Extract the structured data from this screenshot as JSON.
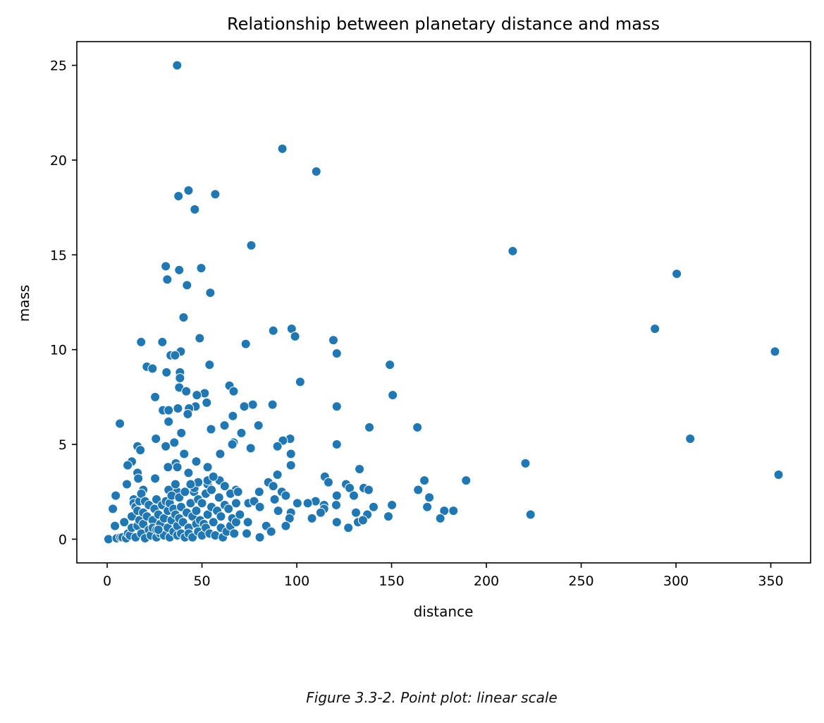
{
  "chart_data": {
    "type": "scatter",
    "title": "Relationship between planetary distance and mass",
    "xlabel": "distance",
    "ylabel": "mass",
    "xlim": [
      -16,
      371
    ],
    "ylim": [
      -1.25,
      26.25
    ],
    "xticks": [
      0,
      50,
      100,
      150,
      200,
      250,
      300,
      350
    ],
    "yticks": [
      0,
      5,
      10,
      15,
      20,
      25
    ],
    "grid": false,
    "color": "#1f77b4",
    "points": [
      [
        36.9,
        25.0
      ],
      [
        92.4,
        20.6
      ],
      [
        110.3,
        19.4
      ],
      [
        42.9,
        18.4
      ],
      [
        37.6,
        18.1
      ],
      [
        57.0,
        18.2
      ],
      [
        46.2,
        17.4
      ],
      [
        76.0,
        15.5
      ],
      [
        213.9,
        15.2
      ],
      [
        300.4,
        14.0
      ],
      [
        30.9,
        14.4
      ],
      [
        49.6,
        14.3
      ],
      [
        38.0,
        14.2
      ],
      [
        31.7,
        13.7
      ],
      [
        42.1,
        13.4
      ],
      [
        54.4,
        13.0
      ],
      [
        40.3,
        11.7
      ],
      [
        288.9,
        11.1
      ],
      [
        97.3,
        11.1
      ],
      [
        87.6,
        11.0
      ],
      [
        99.1,
        10.7
      ],
      [
        119.3,
        10.5
      ],
      [
        48.8,
        10.6
      ],
      [
        17.9,
        10.4
      ],
      [
        29.1,
        10.4
      ],
      [
        73.1,
        10.3
      ],
      [
        352.2,
        9.9
      ],
      [
        38.8,
        9.9
      ],
      [
        121.1,
        9.8
      ],
      [
        149.1,
        9.2
      ],
      [
        54.0,
        9.2
      ],
      [
        20.9,
        9.1
      ],
      [
        23.9,
        9.0
      ],
      [
        31.3,
        8.8
      ],
      [
        33.5,
        9.7
      ],
      [
        35.8,
        9.7
      ],
      [
        38.4,
        8.8
      ],
      [
        38.4,
        8.5
      ],
      [
        101.8,
        8.3
      ],
      [
        64.5,
        8.1
      ],
      [
        38.0,
        8.0
      ],
      [
        66.7,
        7.8
      ],
      [
        51.4,
        7.7
      ],
      [
        41.7,
        7.8
      ],
      [
        47.3,
        7.6
      ],
      [
        150.6,
        7.6
      ],
      [
        52.5,
        7.2
      ],
      [
        25.3,
        7.5
      ],
      [
        87.2,
        7.1
      ],
      [
        76.8,
        7.1
      ],
      [
        72.3,
        7.0
      ],
      [
        121.1,
        7.0
      ],
      [
        46.6,
        7.0
      ],
      [
        29.4,
        6.8
      ],
      [
        37.3,
        6.9
      ],
      [
        43.2,
        6.9
      ],
      [
        32.4,
        6.8
      ],
      [
        6.7,
        6.1
      ],
      [
        32.4,
        6.2
      ],
      [
        42.5,
        6.6
      ],
      [
        66.3,
        6.5
      ],
      [
        61.9,
        6.0
      ],
      [
        79.8,
        6.0
      ],
      [
        138.3,
        5.9
      ],
      [
        163.6,
        5.9
      ],
      [
        54.8,
        5.8
      ],
      [
        70.8,
        5.6
      ],
      [
        39.1,
        5.6
      ],
      [
        25.7,
        5.3
      ],
      [
        96.5,
        5.3
      ],
      [
        92.7,
        5.2
      ],
      [
        307.5,
        5.3
      ],
      [
        66.7,
        5.1
      ],
      [
        66.0,
        5.0
      ],
      [
        75.7,
        4.8
      ],
      [
        121.1,
        5.0
      ],
      [
        35.4,
        5.1
      ],
      [
        30.9,
        4.9
      ],
      [
        16.0,
        4.9
      ],
      [
        89.8,
        4.9
      ],
      [
        17.5,
        4.7
      ],
      [
        40.6,
        4.5
      ],
      [
        59.6,
        4.5
      ],
      [
        96.9,
        4.5
      ],
      [
        13.0,
        4.1
      ],
      [
        220.6,
        4.0
      ],
      [
        36.2,
        4.0
      ],
      [
        47.0,
        4.1
      ],
      [
        37.0,
        3.8
      ],
      [
        32.1,
        3.8
      ],
      [
        10.8,
        3.9
      ],
      [
        96.9,
        3.9
      ],
      [
        133.1,
        3.7
      ],
      [
        16.0,
        3.5
      ],
      [
        354.1,
        3.4
      ],
      [
        42.9,
        3.5
      ],
      [
        89.8,
        3.4
      ],
      [
        114.8,
        3.3
      ],
      [
        116.7,
        3.0
      ],
      [
        167.3,
        3.1
      ],
      [
        189.3,
        3.1
      ],
      [
        25.3,
        3.2
      ],
      [
        59.3,
        3.1
      ],
      [
        16.4,
        3.2
      ],
      [
        85.0,
        3.0
      ],
      [
        53.0,
        2.9
      ],
      [
        10.4,
        2.9
      ],
      [
        126.0,
        2.9
      ],
      [
        135.3,
        2.7
      ],
      [
        87.6,
        2.8
      ],
      [
        127.9,
        2.7
      ],
      [
        137.9,
        2.6
      ],
      [
        164.0,
        2.6
      ],
      [
        32.4,
        2.6
      ],
      [
        19.0,
        2.6
      ],
      [
        67.9,
        2.6
      ],
      [
        80.2,
        2.5
      ],
      [
        92.1,
        2.5
      ],
      [
        36.9,
        2.5
      ],
      [
        45.8,
        2.5
      ],
      [
        4.5,
        2.3
      ],
      [
        121.1,
        2.3
      ],
      [
        94.2,
        2.3
      ],
      [
        130.1,
        2.3
      ],
      [
        169.9,
        2.2
      ],
      [
        74.5,
        1.9
      ],
      [
        77.5,
        2.0
      ],
      [
        88.3,
        2.1
      ],
      [
        109.9,
        2.0
      ],
      [
        105.8,
        1.9
      ],
      [
        100.3,
        1.9
      ],
      [
        114.4,
        1.8
      ],
      [
        120.8,
        1.8
      ],
      [
        150.2,
        1.8
      ],
      [
        80.5,
        1.7
      ],
      [
        140.5,
        1.7
      ],
      [
        168.8,
        1.7
      ],
      [
        182.6,
        1.5
      ],
      [
        177.8,
        1.5
      ],
      [
        114.4,
        1.6
      ],
      [
        90.2,
        1.5
      ],
      [
        96.9,
        1.4
      ],
      [
        131.2,
        1.4
      ],
      [
        3.0,
        1.6
      ],
      [
        112.6,
        1.4
      ],
      [
        137.2,
        1.3
      ],
      [
        223.3,
        1.3
      ],
      [
        175.7,
        1.1
      ],
      [
        148.3,
        1.2
      ],
      [
        108.0,
        1.1
      ],
      [
        96.2,
        1.1
      ],
      [
        121.1,
        0.9
      ],
      [
        132.3,
        0.9
      ],
      [
        134.9,
        1.0
      ],
      [
        74.2,
        0.9
      ],
      [
        4.1,
        0.7
      ],
      [
        83.9,
        0.7
      ],
      [
        94.2,
        0.7
      ],
      [
        127.2,
        0.6
      ],
      [
        86.5,
        0.4
      ],
      [
        73.6,
        0.3
      ],
      [
        0.7,
        0.0
      ],
      [
        80.5,
        0.1
      ],
      [
        5,
        0.05
      ],
      [
        7,
        0.1
      ],
      [
        8,
        0.1
      ],
      [
        9,
        0.9
      ],
      [
        10,
        0.05
      ],
      [
        11,
        0.3
      ],
      [
        12,
        0.2
      ],
      [
        13,
        1.2
      ],
      [
        13,
        0.6
      ],
      [
        14,
        2.1
      ],
      [
        14,
        1.9
      ],
      [
        15,
        0.1
      ],
      [
        15,
        1.7
      ],
      [
        16,
        1.5
      ],
      [
        16,
        0.7
      ],
      [
        17,
        2.0
      ],
      [
        17,
        1.0
      ],
      [
        18,
        2.4
      ],
      [
        18,
        0.3
      ],
      [
        19,
        1.4
      ],
      [
        19,
        0.8
      ],
      [
        20,
        0.05
      ],
      [
        20,
        2.0
      ],
      [
        21,
        1.2
      ],
      [
        22,
        0.5
      ],
      [
        22,
        1.8
      ],
      [
        23,
        0.2
      ],
      [
        24,
        1.0
      ],
      [
        24,
        0.6
      ],
      [
        25,
        1.6
      ],
      [
        26,
        0.1
      ],
      [
        26,
        2.1
      ],
      [
        26,
        0.5
      ],
      [
        27,
        1.3
      ],
      [
        28,
        0.8
      ],
      [
        28,
        0.3
      ],
      [
        29,
        1.8
      ],
      [
        30,
        0.2
      ],
      [
        30,
        1.1
      ],
      [
        31,
        2.0
      ],
      [
        32,
        0.6
      ],
      [
        32,
        1.5
      ],
      [
        33,
        1.9
      ],
      [
        33,
        0.1
      ],
      [
        34,
        1.0
      ],
      [
        34,
        2.3
      ],
      [
        35,
        0.4
      ],
      [
        35,
        1.6
      ],
      [
        36,
        1.3
      ],
      [
        37,
        0.7
      ],
      [
        37,
        0.2
      ],
      [
        38,
        2.2
      ],
      [
        38,
        1.1
      ],
      [
        39,
        0.3
      ],
      [
        39,
        1.7
      ],
      [
        40,
        0.9
      ],
      [
        41,
        0.1
      ],
      [
        41,
        2.5
      ],
      [
        42,
        1.4
      ],
      [
        43,
        0.6
      ],
      [
        43,
        0.3
      ],
      [
        44,
        1.9
      ],
      [
        45,
        1.2
      ],
      [
        45,
        0.1
      ],
      [
        46,
        2.7
      ],
      [
        47,
        0.8
      ],
      [
        47,
        1.5
      ],
      [
        48,
        0.4
      ],
      [
        48,
        2.1
      ],
      [
        49,
        1.0
      ],
      [
        50,
        0.2
      ],
      [
        50,
        1.9
      ],
      [
        51,
        0.8
      ],
      [
        52,
        2.4
      ],
      [
        52,
        0.6
      ],
      [
        53,
        1.3
      ],
      [
        53,
        3.1
      ],
      [
        54,
        0.3
      ],
      [
        55,
        1.7
      ],
      [
        55,
        2.6
      ],
      [
        56,
        0.9
      ],
      [
        57,
        0.2
      ],
      [
        58,
        1.5
      ],
      [
        59,
        2.2
      ],
      [
        60,
        0.6
      ],
      [
        60,
        1.2
      ],
      [
        61,
        0.1
      ],
      [
        62,
        1.8
      ],
      [
        63,
        0.4
      ],
      [
        64,
        1.6
      ],
      [
        65,
        0.7
      ],
      [
        65,
        2.4
      ],
      [
        66,
        1.1
      ],
      [
        67,
        0.3
      ],
      [
        68,
        1.9
      ],
      [
        68,
        0.9
      ],
      [
        69,
        2.5
      ],
      [
        70,
        1.3
      ],
      [
        53,
        3.8
      ],
      [
        48,
        3.0
      ],
      [
        44,
        2.9
      ],
      [
        36,
        2.9
      ],
      [
        27,
        0.5
      ],
      [
        62,
        2.8
      ],
      [
        56,
        3.3
      ]
    ]
  },
  "caption": "Figure 3.3-2. Point plot: linear scale"
}
